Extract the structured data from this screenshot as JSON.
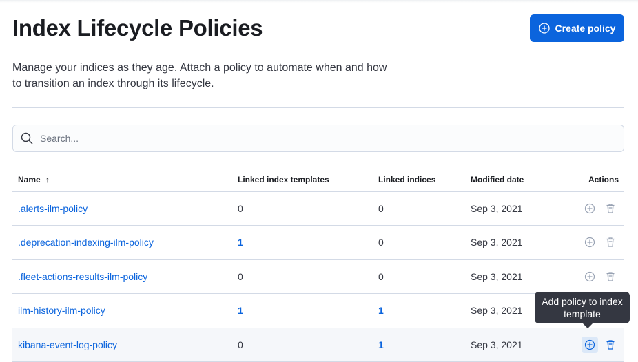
{
  "header": {
    "title": "Index Lifecycle Policies",
    "create_label": "Create policy",
    "description": "Manage your indices as they age. Attach a policy to automate when and how to transition an index through its lifecycle."
  },
  "search": {
    "placeholder": "Search..."
  },
  "table": {
    "columns": [
      "Name",
      "Linked index templates",
      "Linked indices",
      "Modified date",
      "Actions"
    ],
    "sort": {
      "column": "Name",
      "direction": "ascending"
    },
    "rows": [
      {
        "name": ".alerts-ilm-policy",
        "templates": "0",
        "indices": "0",
        "modified": "Sep 3, 2021"
      },
      {
        "name": ".deprecation-indexing-ilm-policy",
        "templates": "1",
        "indices": "0",
        "modified": "Sep 3, 2021"
      },
      {
        "name": ".fleet-actions-results-ilm-policy",
        "templates": "0",
        "indices": "0",
        "modified": "Sep 3, 2021"
      },
      {
        "name": "ilm-history-ilm-policy",
        "templates": "1",
        "indices": "1",
        "modified": "Sep 3, 2021"
      },
      {
        "name": "kibana-event-log-policy",
        "templates": "0",
        "indices": "1",
        "modified": "Sep 3, 2021"
      }
    ]
  },
  "tooltip": {
    "text": "Add policy to index template"
  },
  "colors": {
    "primary": "#0b64dd",
    "tooltip": "#343741"
  }
}
